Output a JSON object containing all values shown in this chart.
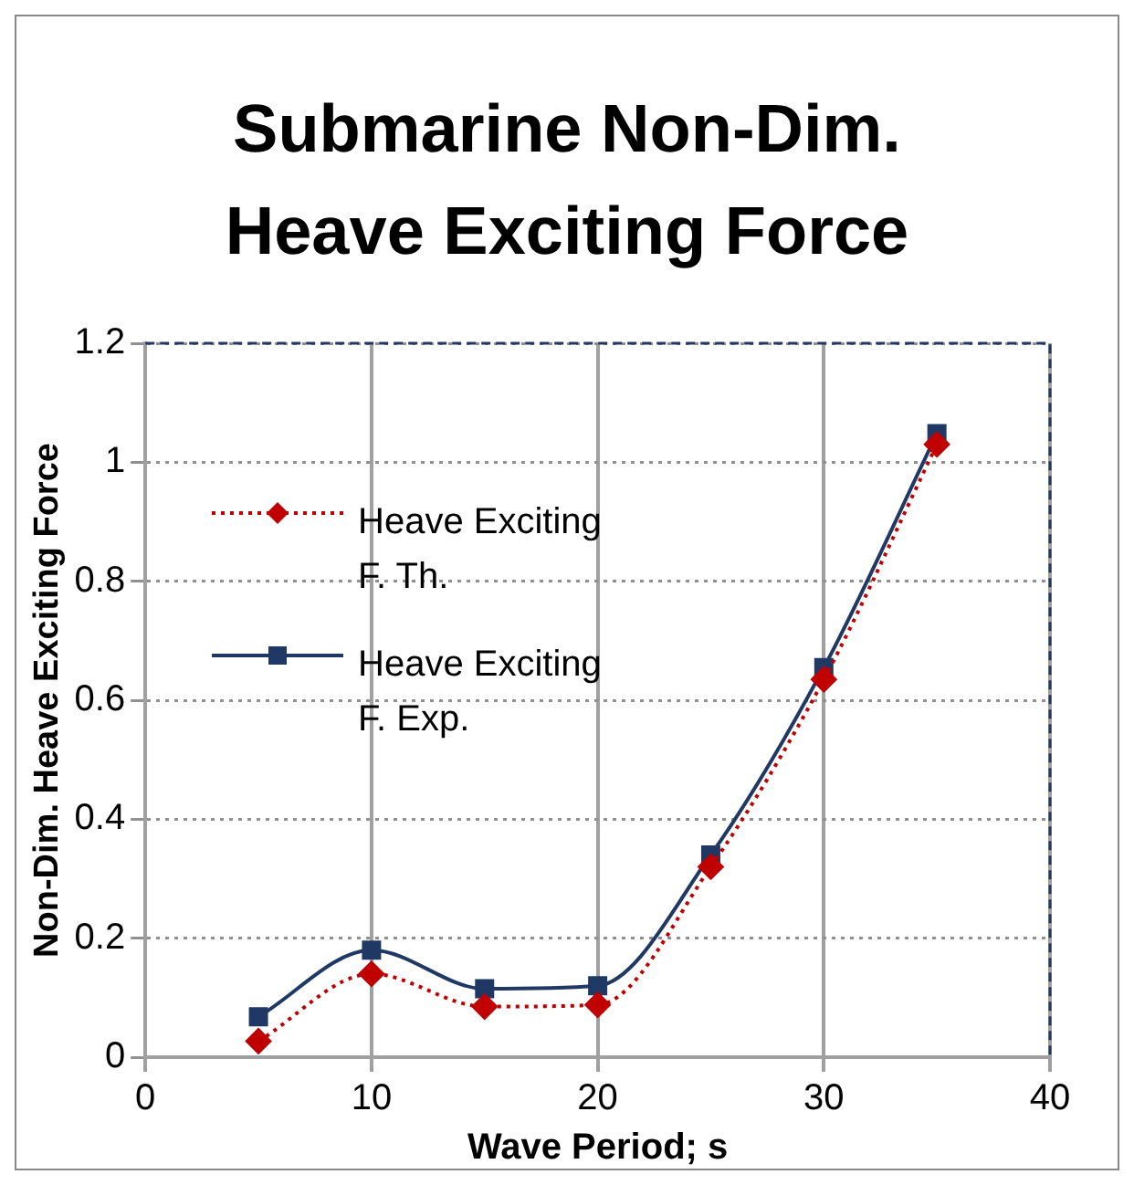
{
  "chart_data": {
    "type": "line",
    "title": "Submarine Non-Dim. Heave Exciting Force",
    "xlabel": "Wave Period; s",
    "ylabel": "Non-Dim. Heave Exciting Force",
    "x": [
      5,
      10,
      15,
      20,
      25,
      30,
      35
    ],
    "series": [
      {
        "name": "Heave Exciting F. Th.",
        "color": "#c00000",
        "values": [
          0.027,
          0.14,
          0.085,
          0.088,
          0.32,
          0.635,
          1.03
        ],
        "marker": "diamond",
        "line_style": "dotted"
      },
      {
        "name": "Heave Exciting F. Exp.",
        "color": "#1f3864",
        "values": [
          0.068,
          0.18,
          0.115,
          0.12,
          0.34,
          0.655,
          1.048
        ],
        "marker": "square",
        "line_style": "solid"
      }
    ],
    "xlim": [
      0,
      40
    ],
    "xticks": [
      0,
      10,
      20,
      30,
      40
    ],
    "ylim": [
      0,
      1.2
    ],
    "yticks": [
      0,
      0.2,
      0.4,
      0.6,
      0.8,
      1,
      1.2
    ],
    "grid": true,
    "legend": "top left"
  }
}
